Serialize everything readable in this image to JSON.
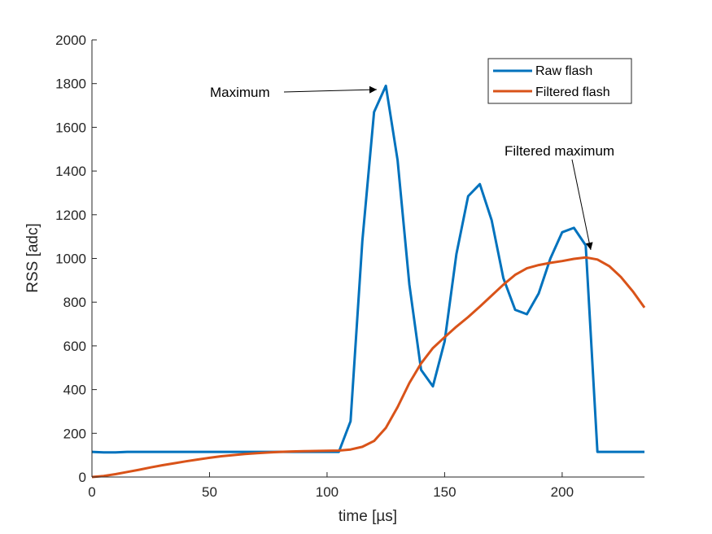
{
  "chart_data": {
    "type": "line",
    "xlabel": "time [µs]",
    "ylabel": "RSS [adc]",
    "xlim": [
      0,
      235
    ],
    "ylim": [
      0,
      2000
    ],
    "x_ticks": [
      0,
      50,
      100,
      150,
      200
    ],
    "y_ticks": [
      0,
      200,
      400,
      600,
      800,
      1000,
      1200,
      1400,
      1600,
      1800,
      2000
    ],
    "grid": false,
    "legend_position": "top-right",
    "series": [
      {
        "name": "Raw flash",
        "color": "#0072BD",
        "x": [
          0,
          5,
          10,
          15,
          20,
          25,
          30,
          35,
          40,
          45,
          50,
          55,
          60,
          65,
          70,
          75,
          80,
          85,
          90,
          95,
          100,
          105,
          110,
          115,
          120,
          125,
          130,
          135,
          140,
          145,
          150,
          155,
          160,
          165,
          170,
          175,
          180,
          185,
          190,
          195,
          200,
          205,
          210,
          215,
          220,
          225,
          230,
          235
        ],
        "y": [
          115,
          113,
          113,
          115,
          115,
          115,
          115,
          115,
          115,
          115,
          115,
          115,
          115,
          115,
          115,
          115,
          115,
          115,
          115,
          115,
          115,
          115,
          255,
          1080,
          1670,
          1790,
          1450,
          880,
          490,
          415,
          620,
          1020,
          1285,
          1340,
          1175,
          910,
          765,
          745,
          840,
          1000,
          1120,
          1140,
          1060,
          115,
          115,
          115,
          115,
          115
        ]
      },
      {
        "name": "Filtered flash",
        "color": "#D95319",
        "x": [
          0,
          5,
          10,
          15,
          20,
          25,
          30,
          35,
          40,
          45,
          50,
          55,
          60,
          65,
          70,
          75,
          80,
          85,
          90,
          95,
          100,
          105,
          110,
          115,
          120,
          125,
          130,
          135,
          140,
          145,
          150,
          155,
          160,
          165,
          170,
          175,
          180,
          185,
          190,
          195,
          200,
          205,
          210,
          215,
          220,
          225,
          230,
          235
        ],
        "y": [
          0,
          5,
          13,
          23,
          33,
          44,
          54,
          63,
          72,
          80,
          88,
          95,
          100,
          105,
          109,
          112,
          115,
          117,
          118,
          119,
          120,
          121,
          126,
          138,
          165,
          225,
          320,
          430,
          520,
          590,
          640,
          688,
          732,
          780,
          830,
          880,
          925,
          955,
          970,
          980,
          988,
          998,
          1005,
          995,
          965,
          915,
          850,
          775
        ]
      }
    ],
    "annotations": [
      {
        "text": "Maximum",
        "target": [
          125,
          1790
        ]
      },
      {
        "text": "Filtered maximum",
        "target": [
          210,
          1005
        ]
      }
    ]
  }
}
